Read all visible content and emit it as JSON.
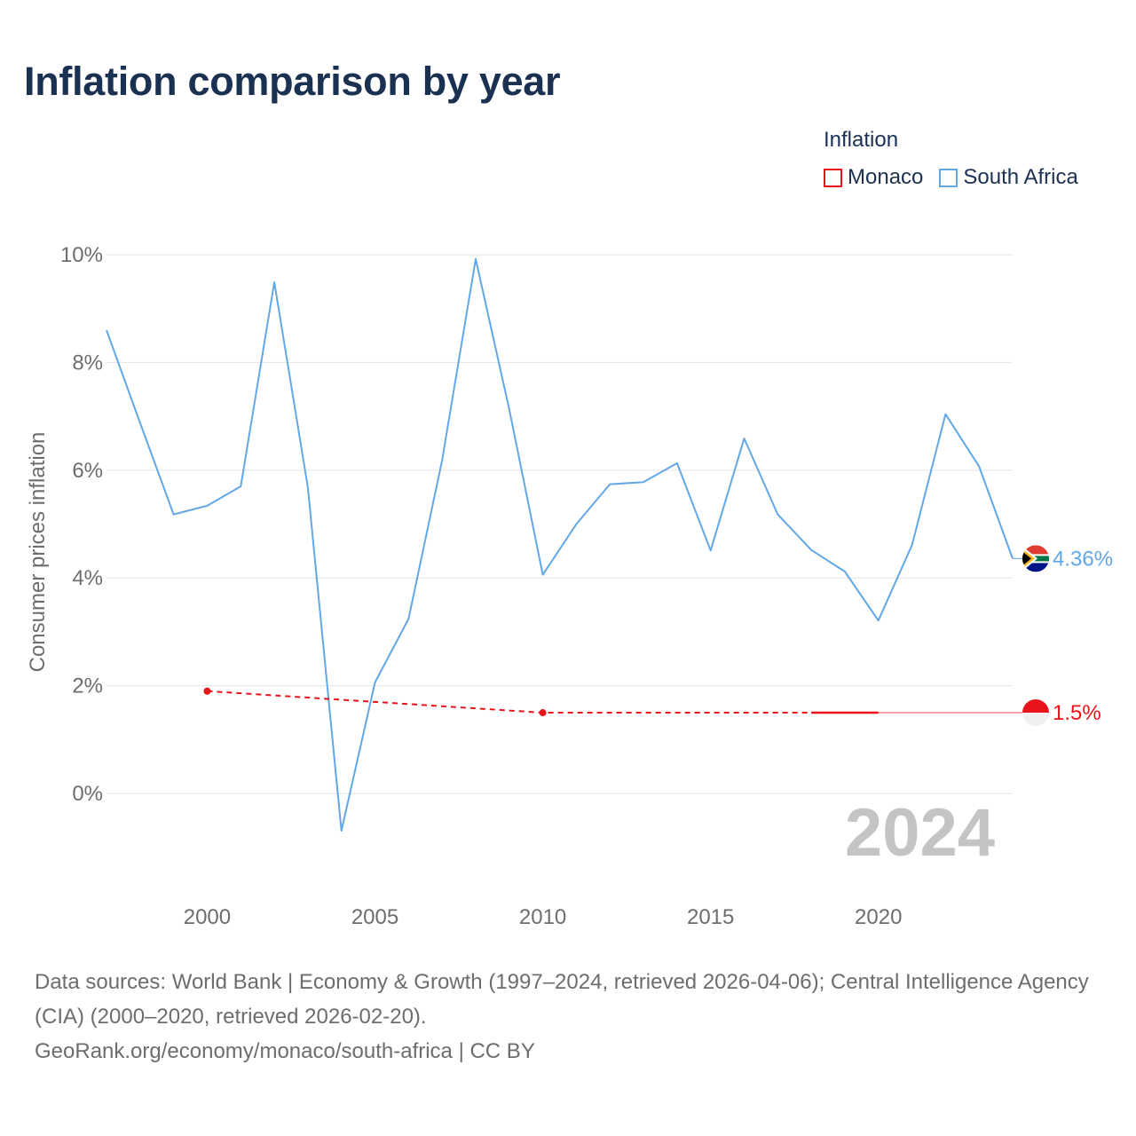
{
  "title": "Inflation comparison by year",
  "legend": {
    "title": "Inflation",
    "items": [
      {
        "label": "Monaco",
        "color": "#e8131b"
      },
      {
        "label": "South Africa",
        "color": "#62a7e6"
      }
    ]
  },
  "footer": {
    "sources": "Data sources: World Bank | Economy & Growth (1997–2024, retrieved 2026-04-06); Central Intelligence Agency (CIA) (2000–2020, retrieved 2026-02-20).",
    "credit": "GeoRank.org/economy/monaco/south-africa | CC BY"
  },
  "chart_data": {
    "type": "line",
    "title": "Inflation comparison by year",
    "ylabel": "Consumer prices inflation",
    "xlabel": "",
    "xlim": [
      1997,
      2024
    ],
    "ylim": [
      -1.3,
      10
    ],
    "y_ticks": [
      0,
      2,
      4,
      6,
      8,
      10
    ],
    "y_tick_labels": [
      "0%",
      "2%",
      "4%",
      "6%",
      "8%",
      "10%"
    ],
    "x_ticks": [
      2000,
      2005,
      2010,
      2015,
      2020
    ],
    "x_tick_labels": [
      "2000",
      "2005",
      "2010",
      "2015",
      "2020"
    ],
    "year_label": "2024",
    "grid": true,
    "series": [
      {
        "name": "South Africa",
        "color": "#62a7e6",
        "x": [
          1997,
          1998,
          1999,
          2000,
          2001,
          2002,
          2003,
          2004,
          2005,
          2006,
          2007,
          2008,
          2009,
          2010,
          2011,
          2012,
          2013,
          2014,
          2015,
          2016,
          2017,
          2018,
          2019,
          2020,
          2021,
          2022,
          2023,
          2024
        ],
        "values": [
          8.6,
          6.88,
          5.18,
          5.34,
          5.7,
          9.49,
          5.68,
          -0.69,
          2.06,
          3.24,
          6.18,
          9.92,
          7.13,
          4.06,
          5.0,
          5.74,
          5.78,
          6.13,
          4.51,
          6.59,
          5.18,
          4.52,
          4.12,
          3.21,
          4.61,
          7.04,
          6.07,
          4.36
        ],
        "end_label": "4.36%"
      },
      {
        "name": "Monaco",
        "color": "#e8131b",
        "x": [
          2000,
          2010,
          2018,
          2020,
          2024
        ],
        "values": [
          1.9,
          1.5,
          1.5,
          1.5,
          1.5
        ],
        "end_label": "1.5%"
      }
    ]
  }
}
